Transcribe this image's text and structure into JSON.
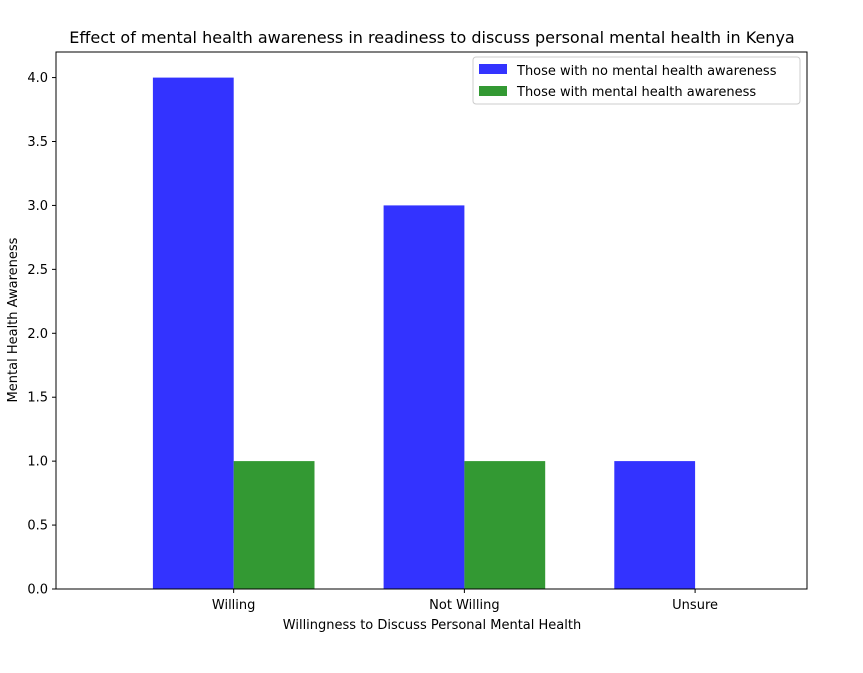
{
  "chart_data": {
    "type": "bar",
    "title": "Effect of mental health awareness in readiness to discuss personal mental health in Kenya",
    "xlabel": "Willingness to Discuss Personal Mental Health",
    "ylabel": "Mental Health Awareness",
    "categories": [
      "Willing",
      "Not Willing",
      "Unsure"
    ],
    "series": [
      {
        "name": "Those with no mental health awareness",
        "values": [
          4,
          3,
          1
        ],
        "color": "#3333ff"
      },
      {
        "name": "Those with mental health awareness",
        "values": [
          1,
          1,
          0
        ],
        "color": "#339933"
      }
    ],
    "ylim": [
      0,
      4.2
    ],
    "yticks": [
      0.0,
      0.5,
      1.0,
      1.5,
      2.0,
      2.5,
      3.0,
      3.5,
      4.0
    ],
    "ytick_labels": [
      "0.0",
      "0.5",
      "1.0",
      "1.5",
      "2.0",
      "2.5",
      "3.0",
      "3.5",
      "4.0"
    ],
    "grid": false,
    "legend_position": "upper right"
  }
}
